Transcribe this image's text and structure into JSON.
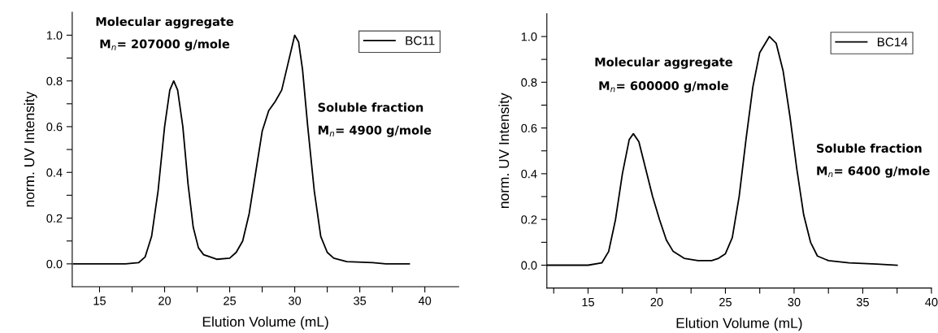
{
  "chart_data": [
    {
      "type": "line",
      "xlabel": "Elution Volume (mL)",
      "ylabel": "norm. UV Intensity",
      "legend": "top right",
      "grid": false,
      "marker": "none",
      "line_style": "solid",
      "xlim": [
        12.9,
        42.6
      ],
      "ylim": [
        -0.1,
        1.1
      ],
      "xticks": [
        15,
        {
          "value": 17.5,
          "label": null
        },
        20,
        {
          "value": 22.5,
          "label": null
        },
        25,
        {
          "value": 27.5,
          "label": null
        },
        30,
        {
          "value": 32.5,
          "label": null
        },
        35,
        {
          "value": 37.5,
          "label": null
        },
        40
      ],
      "yticks": [
        {
          "value": 0,
          "label": "0.0"
        },
        {
          "value": 0.1,
          "label": null
        },
        {
          "value": 0.2,
          "label": "0.2"
        },
        {
          "value": 0.3,
          "label": null
        },
        {
          "value": 0.4,
          "label": "0.4"
        },
        {
          "value": 0.5,
          "label": null
        },
        {
          "value": 0.6,
          "label": "0.6"
        },
        {
          "value": 0.7,
          "label": null
        },
        {
          "value": 0.8,
          "label": "0.8"
        },
        {
          "value": 0.9,
          "label": null
        },
        {
          "value": 1.0,
          "label": "1.0"
        }
      ],
      "annotations": [
        "Molecular aggregate",
        "M$_{n}$= 207000 g/mole",
        "Soluble fraction",
        "M$_{n}$= 4900 g/mole"
      ],
      "series": [
        {
          "name": "BC11",
          "color": "#000000",
          "x": [
            13,
            17,
            18,
            18.5,
            19,
            19.5,
            20,
            20.4,
            20.7,
            21,
            21.4,
            21.8,
            22.2,
            22.6,
            23,
            24,
            25,
            25.5,
            26,
            26.5,
            27,
            27.5,
            28,
            28.5,
            29,
            29.5,
            30,
            30.3,
            30.6,
            31,
            31.5,
            32,
            32.5,
            33,
            34,
            36,
            37,
            38.8
          ],
          "values": [
            0,
            0,
            0.005,
            0.03,
            0.12,
            0.32,
            0.6,
            0.76,
            0.8,
            0.76,
            0.6,
            0.35,
            0.16,
            0.07,
            0.04,
            0.02,
            0.025,
            0.05,
            0.1,
            0.22,
            0.4,
            0.58,
            0.67,
            0.71,
            0.76,
            0.88,
            1.0,
            0.97,
            0.85,
            0.6,
            0.32,
            0.12,
            0.05,
            0.025,
            0.01,
            0.005,
            0,
            0
          ]
        }
      ]
    },
    {
      "type": "line",
      "xlabel": "Elution Volume (mL)",
      "ylabel": "norm. UV Intensity",
      "legend": "top right",
      "grid": false,
      "marker": "none",
      "line_style": "solid",
      "xlim": [
        12,
        40
      ],
      "ylim": [
        -0.1,
        1.1
      ],
      "xticks": [
        {
          "value": 12.5,
          "label": null
        },
        15,
        {
          "value": 17.5,
          "label": null
        },
        20,
        {
          "value": 22.5,
          "label": null
        },
        25,
        {
          "value": 27.5,
          "label": null
        },
        30,
        {
          "value": 32.5,
          "label": null
        },
        35,
        {
          "value": 37.5,
          "label": null
        },
        40
      ],
      "yticks": [
        {
          "value": 0,
          "label": "0.0"
        },
        {
          "value": 0.1,
          "label": null
        },
        {
          "value": 0.2,
          "label": "0.2"
        },
        {
          "value": 0.3,
          "label": null
        },
        {
          "value": 0.4,
          "label": "0.4"
        },
        {
          "value": 0.5,
          "label": null
        },
        {
          "value": 0.6,
          "label": "0.6"
        },
        {
          "value": 0.7,
          "label": null
        },
        {
          "value": 0.8,
          "label": "0.8"
        },
        {
          "value": 0.9,
          "label": null
        },
        {
          "value": 1.0,
          "label": "1.0"
        }
      ],
      "annotations": [
        "Molecular aggregate",
        "M$_{n}$= 600000 g/mole",
        "Soluble fraction",
        "M$_{n}$= 6400 g/mole"
      ],
      "series": [
        {
          "name": "BC14",
          "color": "#000000",
          "x": [
            12,
            15,
            16,
            16.5,
            17,
            17.5,
            18,
            18.3,
            18.7,
            19.2,
            19.7,
            20.2,
            20.7,
            21.2,
            22,
            23,
            24,
            24.5,
            25,
            25.5,
            26,
            26.5,
            27,
            27.5,
            28.2,
            28.7,
            29.2,
            29.7,
            30.2,
            30.7,
            31.2,
            31.7,
            32.5,
            34,
            36,
            37.5
          ],
          "values": [
            0,
            0,
            0.01,
            0.06,
            0.2,
            0.4,
            0.55,
            0.575,
            0.54,
            0.42,
            0.3,
            0.2,
            0.11,
            0.06,
            0.03,
            0.02,
            0.02,
            0.03,
            0.05,
            0.12,
            0.3,
            0.55,
            0.78,
            0.93,
            1.0,
            0.97,
            0.85,
            0.65,
            0.42,
            0.22,
            0.1,
            0.04,
            0.02,
            0.01,
            0.005,
            0
          ]
        }
      ]
    }
  ]
}
